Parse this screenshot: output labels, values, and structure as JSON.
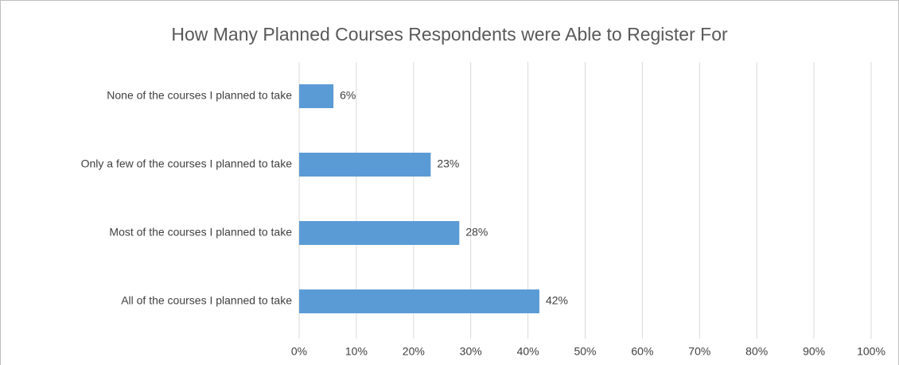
{
  "chart_data": {
    "type": "hbar",
    "title": "How Many Planned Courses Respondents were Able to Register For",
    "categories": [
      "None of the courses I planned to take",
      "Only a few of the courses I planned to take",
      "Most of the courses I planned to take",
      "All of the courses I planned to take"
    ],
    "values": [
      6,
      23,
      28,
      42
    ],
    "value_labels": [
      "6%",
      "23%",
      "28%",
      "42%"
    ],
    "color": "#5b9bd5",
    "xlim": [
      0,
      100
    ],
    "xticks": [
      {
        "value": 0,
        "label": "0%"
      },
      {
        "value": 10,
        "label": "10%"
      },
      {
        "value": 20,
        "label": "20%"
      },
      {
        "value": 30,
        "label": "30%"
      },
      {
        "value": 40,
        "label": "40%"
      },
      {
        "value": 50,
        "label": "50%"
      },
      {
        "value": 60,
        "label": "60%"
      },
      {
        "value": 70,
        "label": "70%"
      },
      {
        "value": 80,
        "label": "80%"
      },
      {
        "value": 90,
        "label": "90%"
      },
      {
        "value": 100,
        "label": "100%"
      }
    ],
    "grid": true
  }
}
